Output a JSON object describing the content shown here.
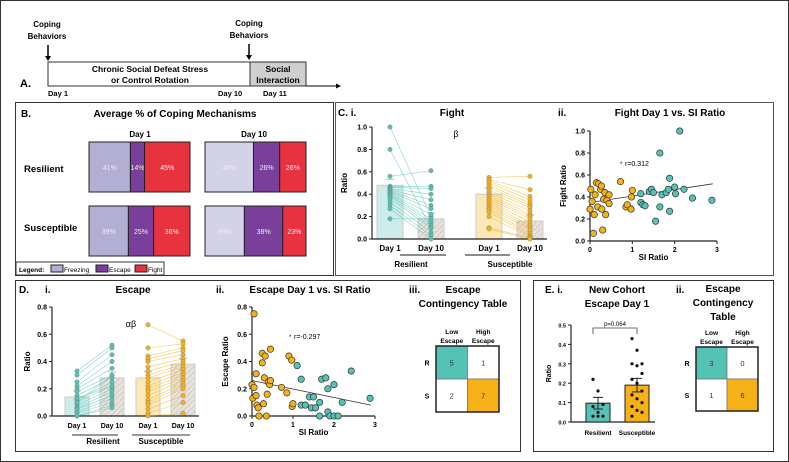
{
  "colors": {
    "teal": "#55c2b6",
    "orange": "#f6b117",
    "freezing": "#b2afd3",
    "freezing_light": "#d3d2e6",
    "escape": "#7a3f9a",
    "fight": "#e9323f",
    "gray_box": "#cfcfcf"
  },
  "panelA": {
    "label": "A.",
    "coping1": [
      "Coping",
      "Behaviors"
    ],
    "coping2": [
      "Coping",
      "Behaviors"
    ],
    "main_box": [
      "Chronic Social Defeat Stress",
      "or Control Rotation"
    ],
    "si_box": [
      "Social",
      "Interaction"
    ],
    "day1": "Day 1",
    "day10": "Day 10",
    "day11": "Day 11"
  },
  "panelB": {
    "label": "B.",
    "title": "Average % of Coping Mechanisms",
    "col_day1": "Day 1",
    "col_day10": "Day 10",
    "row_res": "Resilient",
    "row_sus": "Susceptible",
    "legend": {
      "title": "Legend:",
      "freezing": "Freezing",
      "escape": "Escape",
      "fight": "Fight"
    }
  },
  "panelC": {
    "label": "C. i.",
    "title_i": "Fight",
    "label_ii": "ii.",
    "title_ii": "Fight Day 1 vs. SI Ratio",
    "sig": "β",
    "group_res": "Resilient",
    "group_sus": "Susceptible"
  },
  "panelD": {
    "label": "D.",
    "label_i": "i.",
    "title_i": "Escape",
    "sig": "αβ",
    "label_ii": "ii.",
    "title_ii": "Escape Day 1 vs. SI Ratio",
    "label_iii": "iii.",
    "title_iii": [
      "Escape",
      "Contingency Table"
    ],
    "group_res": "Resilient",
    "group_sus": "Susceptible"
  },
  "panelE": {
    "label": "E. i.",
    "title_i": [
      "New Cohort",
      "Escape Day 1"
    ],
    "label_ii": "ii.",
    "title_ii": [
      "Escape",
      "Contingency",
      "Table"
    ]
  },
  "chart_data": [
    {
      "id": "B",
      "type": "bar",
      "stacked": true,
      "title": "Average % of Coping Mechanisms",
      "categories": [
        "Freezing",
        "Escape",
        "Fight"
      ],
      "groups": [
        {
          "row": "Resilient",
          "day": "Day 1",
          "values": [
            41,
            14,
            45
          ],
          "labels": [
            "41%",
            "14%",
            "45%"
          ]
        },
        {
          "row": "Resilient",
          "day": "Day 10",
          "values": [
            48,
            26,
            26
          ],
          "labels": [
            "48%",
            "26%",
            "26%"
          ]
        },
        {
          "row": "Susceptible",
          "day": "Day 1",
          "values": [
            39,
            25,
            36
          ],
          "labels": [
            "39%",
            "25%",
            "36%"
          ]
        },
        {
          "row": "Susceptible",
          "day": "Day 10",
          "values": [
            39,
            38,
            23
          ],
          "labels": [
            "39%",
            "38%",
            "23%"
          ]
        }
      ]
    },
    {
      "id": "Ci",
      "type": "bar",
      "title": "Fight",
      "ylabel": "Ratio",
      "ylim": [
        0,
        1
      ],
      "yticks": [
        "0.0",
        "0.2",
        "0.4",
        "0.6",
        "0.8",
        "1.0"
      ],
      "categories": [
        "Day 1",
        "Day 10",
        "Day 1",
        "Day 10"
      ],
      "means": [
        0.48,
        0.18,
        0.4,
        0.16
      ],
      "paired": [
        {
          "group": "Resilient",
          "d1": [
            1.0,
            0.8,
            0.56,
            0.47,
            0.46,
            0.45,
            0.44,
            0.43,
            0.42,
            0.41,
            0.4,
            0.39,
            0.38,
            0.36,
            0.33,
            0.3,
            0.27,
            0.18
          ],
          "d10": [
            0.2,
            0.1,
            0.61,
            0.47,
            0.45,
            0.4,
            0.35,
            0.3,
            0.27,
            0.22,
            0.18,
            0.15,
            0.12,
            0.1,
            0.06,
            0.03,
            0.0,
            0.18
          ]
        },
        {
          "group": "Susceptible",
          "d1": [
            0.55,
            0.53,
            0.52,
            0.5,
            0.48,
            0.46,
            0.44,
            0.42,
            0.4,
            0.38,
            0.36,
            0.34,
            0.32,
            0.3,
            0.28,
            0.26,
            0.24,
            0.2,
            0.1,
            0.09
          ],
          "d10": [
            0.56,
            0.44,
            0.38,
            0.35,
            0.32,
            0.3,
            0.28,
            0.25,
            0.22,
            0.2,
            0.18,
            0.15,
            0.12,
            0.1,
            0.08,
            0.05,
            0.03,
            0.02,
            0.01,
            0.0
          ]
        }
      ]
    },
    {
      "id": "Cii",
      "type": "scatter",
      "title": "Fight Day 1 vs. SI Ratio",
      "xlabel": "SI Ratio",
      "ylabel": "Fight Ratio",
      "xlim": [
        0,
        3
      ],
      "ylim": [
        0,
        1
      ],
      "xticks": [
        "0",
        "1",
        "2",
        "3"
      ],
      "yticks": [
        "0.0",
        "0.2",
        "0.4",
        "0.6",
        "0.8",
        "1.0"
      ],
      "annotation": "r=0.312",
      "star": "*",
      "fit": [
        [
          0,
          0.35
        ],
        [
          2.9,
          0.52
        ]
      ],
      "susceptible": [
        [
          0.02,
          0.47
        ],
        [
          0.05,
          0.36
        ],
        [
          0.08,
          0.07
        ],
        [
          0.0,
          0.29
        ],
        [
          0.12,
          0.42
        ],
        [
          0.15,
          0.53
        ],
        [
          0.18,
          0.31
        ],
        [
          0.2,
          0.52
        ],
        [
          0.25,
          0.47
        ],
        [
          0.27,
          0.5
        ],
        [
          0.28,
          0.29
        ],
        [
          0.3,
          0.1
        ],
        [
          0.32,
          0.38
        ],
        [
          0.35,
          0.44
        ],
        [
          0.37,
          0.24
        ],
        [
          0.4,
          0.37
        ],
        [
          0.45,
          0.42
        ],
        [
          0.45,
          0.34
        ],
        [
          0.72,
          0.54
        ],
        [
          0.85,
          0.31
        ],
        [
          0.88,
          0.33
        ],
        [
          0.97,
          0.29
        ],
        [
          0.98,
          0.4
        ],
        [
          1.0,
          0.46
        ],
        [
          0.1,
          0.24
        ]
      ],
      "resilient": [
        [
          1.2,
          0.43
        ],
        [
          1.2,
          0.35
        ],
        [
          1.25,
          0.33
        ],
        [
          1.3,
          0.32
        ],
        [
          1.4,
          0.45
        ],
        [
          1.45,
          0.47
        ],
        [
          1.5,
          0.44
        ],
        [
          1.55,
          0.18
        ],
        [
          1.65,
          0.8
        ],
        [
          1.65,
          0.31
        ],
        [
          1.7,
          0.42
        ],
        [
          1.8,
          0.44
        ],
        [
          1.85,
          0.47
        ],
        [
          1.88,
          0.57
        ],
        [
          1.88,
          0.27
        ],
        [
          2.0,
          0.49
        ],
        [
          2.02,
          0.43
        ],
        [
          2.12,
          1.0
        ],
        [
          2.22,
          0.47
        ],
        [
          2.42,
          0.39
        ],
        [
          2.88,
          0.37
        ]
      ]
    },
    {
      "id": "Di",
      "type": "bar",
      "title": "Escape",
      "ylabel": "Ratio",
      "ylim": [
        0,
        0.8
      ],
      "yticks": [
        "0.0",
        "0.2",
        "0.4",
        "0.6",
        "0.8"
      ],
      "categories": [
        "Day 1",
        "Day 10",
        "Day 1",
        "Day 10"
      ],
      "means": [
        0.14,
        0.28,
        0.28,
        0.38
      ],
      "paired": [
        {
          "group": "Resilient",
          "d1": [
            0.33,
            0.3,
            0.25,
            0.22,
            0.2,
            0.18,
            0.15,
            0.12,
            0.1,
            0.08,
            0.06,
            0.05,
            0.03,
            0.02,
            0.0,
            0.0,
            0.1,
            0.13
          ],
          "d10": [
            0.52,
            0.5,
            0.45,
            0.4,
            0.35,
            0.3,
            0.28,
            0.25,
            0.22,
            0.2,
            0.18,
            0.15,
            0.13,
            0.1,
            0.08,
            0.06,
            0.3,
            0.22
          ]
        },
        {
          "group": "Susceptible",
          "d1": [
            0.67,
            0.5,
            0.44,
            0.42,
            0.4,
            0.36,
            0.33,
            0.3,
            0.28,
            0.25,
            0.22,
            0.2,
            0.18,
            0.15,
            0.12,
            0.1,
            0.08,
            0.05,
            0.02,
            0.0
          ],
          "d10": [
            0.55,
            0.53,
            0.5,
            0.48,
            0.45,
            0.42,
            0.4,
            0.38,
            0.36,
            0.34,
            0.32,
            0.3,
            0.28,
            0.26,
            0.24,
            0.22,
            0.2,
            0.15,
            0.1,
            0.02
          ]
        }
      ]
    },
    {
      "id": "Dii",
      "type": "scatter",
      "title": "Escape Day 1 vs. SI Ratio",
      "xlabel": "SI Ratio",
      "ylabel": "Escape Ratio",
      "xlim": [
        0,
        3
      ],
      "ylim": [
        0,
        0.8
      ],
      "xticks": [
        "0",
        "1",
        "2",
        "3"
      ],
      "yticks": [
        "0.0",
        "0.2",
        "0.4",
        "0.6",
        "0.8"
      ],
      "annotation": "r=-0.297",
      "star": "*",
      "fit": [
        [
          0,
          0.26
        ],
        [
          2.9,
          0.08
        ]
      ],
      "susceptible": [
        [
          0.05,
          0.75
        ],
        [
          0.0,
          0.23
        ],
        [
          0.02,
          0.13
        ],
        [
          0.05,
          0.21
        ],
        [
          0.1,
          0.31
        ],
        [
          0.1,
          0.15
        ],
        [
          0.12,
          0.08
        ],
        [
          0.15,
          0.06
        ],
        [
          0.17,
          0.0
        ],
        [
          0.25,
          0.46
        ],
        [
          0.25,
          0.39
        ],
        [
          0.28,
          0.09
        ],
        [
          0.3,
          0.28
        ],
        [
          0.32,
          0.44
        ],
        [
          0.35,
          0.0
        ],
        [
          0.37,
          0.16
        ],
        [
          0.4,
          0.25
        ],
        [
          0.43,
          0.23
        ],
        [
          0.45,
          0.26
        ],
        [
          0.45,
          0.49
        ],
        [
          0.72,
          0.21
        ],
        [
          0.85,
          0.17
        ],
        [
          0.9,
          0.44
        ],
        [
          0.97,
          0.41
        ],
        [
          0.98,
          0.07
        ],
        [
          1.0,
          0.09
        ]
      ],
      "resilient": [
        [
          1.1,
          0.37
        ],
        [
          1.2,
          0.27
        ],
        [
          1.2,
          0.08
        ],
        [
          1.3,
          0.08
        ],
        [
          1.4,
          0.14
        ],
        [
          1.45,
          0.06
        ],
        [
          1.5,
          0.14
        ],
        [
          1.55,
          0.06
        ],
        [
          1.65,
          0.1
        ],
        [
          1.65,
          0.0
        ],
        [
          1.7,
          0.27
        ],
        [
          1.8,
          0.28
        ],
        [
          1.85,
          0.03
        ],
        [
          1.85,
          0.2
        ],
        [
          1.9,
          0.0
        ],
        [
          2.0,
          0.23
        ],
        [
          2.0,
          0.0
        ],
        [
          2.1,
          0.0
        ],
        [
          2.2,
          0.1
        ],
        [
          2.42,
          0.33
        ],
        [
          2.88,
          0.13
        ]
      ]
    },
    {
      "id": "Diii",
      "type": "table",
      "title": "Escape Contingency Table",
      "columns": [
        "Low Escape",
        "High Escape"
      ],
      "rows": [
        "R",
        "S"
      ],
      "cells": [
        [
          "5",
          "1"
        ],
        [
          "2",
          "7"
        ]
      ]
    },
    {
      "id": "Ei",
      "type": "bar",
      "title": "New Cohort Escape Day 1",
      "ylabel": "Ratio",
      "ylim": [
        0,
        0.5
      ],
      "yticks": [
        "0.0",
        "0.1",
        "0.2",
        "0.3",
        "0.4",
        "0.5"
      ],
      "categories": [
        "Resilient",
        "Susceptible"
      ],
      "means": [
        0.097,
        0.19
      ],
      "sem": [
        0.03,
        0.035
      ],
      "pvalue": "p=0.064",
      "points": [
        [
          0.22,
          0.16,
          0.09,
          0.08,
          0.05,
          0.03,
          0.03,
          0.03
        ],
        [
          0.43,
          0.37,
          0.3,
          0.3,
          0.29,
          0.25,
          0.22,
          0.2,
          0.16,
          0.14,
          0.12,
          0.1,
          0.08,
          0.06,
          0.05,
          0.03
        ]
      ]
    },
    {
      "id": "Eii",
      "type": "table",
      "title": "Escape Contingency Table",
      "columns": [
        "Low Escape",
        "High Escape"
      ],
      "rows": [
        "R",
        "S"
      ],
      "cells": [
        [
          "3",
          "0"
        ],
        [
          "1",
          "6"
        ]
      ]
    }
  ]
}
